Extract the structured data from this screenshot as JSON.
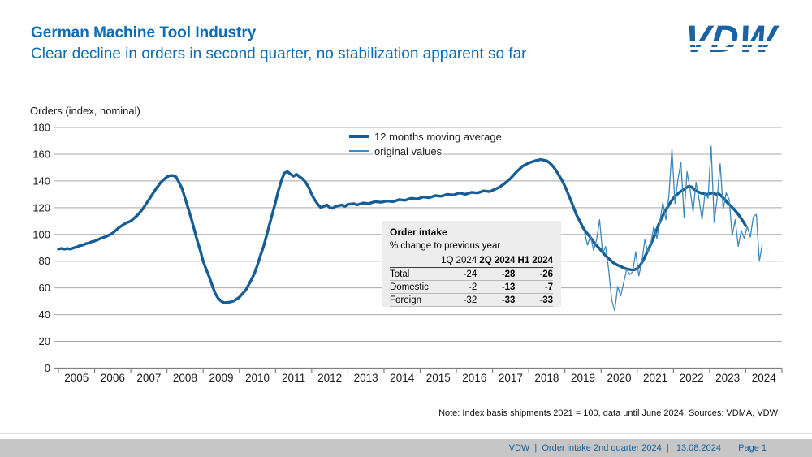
{
  "header": {
    "title": "German Machine Tool Industry",
    "subtitle": "Clear decline in orders in second quarter, no stabilization apparent so far"
  },
  "logo": {
    "text": "VDW"
  },
  "colors": {
    "title_blue": "#0d6cb4",
    "line_thick": "#155d96",
    "line_thin": "#3d89bd",
    "grid": "#a9a9a9",
    "axis": "#7f7f7f",
    "table_bg": "#ededee",
    "footer_bg": "#c6c6c6",
    "footer_text": "#14639f",
    "logo_blue": "#1c63a4"
  },
  "chart_data": {
    "type": "line",
    "title": "Orders (index, nominal)",
    "xlabel": "",
    "ylabel": "Orders (index, nominal)",
    "ylim": [
      0,
      180
    ],
    "grid": true,
    "legend_position": "top-center",
    "y_ticks": [
      0,
      20,
      40,
      60,
      80,
      100,
      120,
      140,
      160,
      180
    ],
    "x_years": [
      "2005",
      "2006",
      "2007",
      "2008",
      "2009",
      "2010",
      "2011",
      "2012",
      "2013",
      "2014",
      "2015",
      "2016",
      "2017",
      "2018",
      "2019",
      "2020",
      "2021",
      "2022",
      "2023",
      "2024"
    ],
    "legend": [
      {
        "name": "12 months moving average",
        "style": "thick"
      },
      {
        "name": "original values",
        "style": "thin"
      }
    ],
    "series": [
      {
        "name": "12 months moving average",
        "points": [
          [
            2005.0,
            89
          ],
          [
            2005.08,
            89.5
          ],
          [
            2005.17,
            89
          ],
          [
            2005.25,
            89.5
          ],
          [
            2005.33,
            89
          ],
          [
            2005.42,
            90
          ],
          [
            2005.5,
            90.5
          ],
          [
            2005.58,
            91.5
          ],
          [
            2005.67,
            92
          ],
          [
            2005.75,
            93
          ],
          [
            2005.83,
            93.5
          ],
          [
            2005.92,
            94.5
          ],
          [
            2006.0,
            95
          ],
          [
            2006.17,
            97
          ],
          [
            2006.33,
            98.5
          ],
          [
            2006.5,
            101
          ],
          [
            2006.67,
            105
          ],
          [
            2006.83,
            108
          ],
          [
            2007.0,
            110
          ],
          [
            2007.17,
            114
          ],
          [
            2007.33,
            119
          ],
          [
            2007.5,
            126
          ],
          [
            2007.67,
            133
          ],
          [
            2007.83,
            139
          ],
          [
            2008.0,
            143
          ],
          [
            2008.08,
            144
          ],
          [
            2008.17,
            144
          ],
          [
            2008.25,
            143
          ],
          [
            2008.33,
            139
          ],
          [
            2008.42,
            134
          ],
          [
            2008.5,
            127
          ],
          [
            2008.58,
            120
          ],
          [
            2008.67,
            112
          ],
          [
            2008.75,
            104
          ],
          [
            2008.83,
            96
          ],
          [
            2008.92,
            88
          ],
          [
            2009.0,
            80
          ],
          [
            2009.08,
            74
          ],
          [
            2009.17,
            68
          ],
          [
            2009.25,
            62
          ],
          [
            2009.33,
            56
          ],
          [
            2009.42,
            52
          ],
          [
            2009.5,
            50
          ],
          [
            2009.58,
            49
          ],
          [
            2009.67,
            49
          ],
          [
            2009.75,
            49.5
          ],
          [
            2009.83,
            50
          ],
          [
            2009.92,
            51.5
          ],
          [
            2010.0,
            53
          ],
          [
            2010.08,
            55.5
          ],
          [
            2010.17,
            58
          ],
          [
            2010.25,
            62
          ],
          [
            2010.33,
            66
          ],
          [
            2010.42,
            71
          ],
          [
            2010.5,
            77
          ],
          [
            2010.58,
            84
          ],
          [
            2010.67,
            91
          ],
          [
            2010.75,
            99
          ],
          [
            2010.83,
            107
          ],
          [
            2010.92,
            116
          ],
          [
            2011.0,
            124
          ],
          [
            2011.08,
            133
          ],
          [
            2011.17,
            141
          ],
          [
            2011.25,
            146
          ],
          [
            2011.33,
            147
          ],
          [
            2011.42,
            145
          ],
          [
            2011.5,
            143.5
          ],
          [
            2011.58,
            145
          ],
          [
            2011.67,
            143
          ],
          [
            2011.75,
            141.5
          ],
          [
            2011.83,
            139
          ],
          [
            2011.92,
            135
          ],
          [
            2012.0,
            130
          ],
          [
            2012.08,
            126
          ],
          [
            2012.17,
            122.5
          ],
          [
            2012.25,
            120
          ],
          [
            2012.33,
            121
          ],
          [
            2012.42,
            122
          ],
          [
            2012.5,
            120
          ],
          [
            2012.58,
            119.5
          ],
          [
            2012.67,
            121
          ],
          [
            2012.75,
            121.5
          ],
          [
            2012.83,
            122
          ],
          [
            2012.92,
            121
          ],
          [
            2013.0,
            122.5
          ],
          [
            2013.17,
            123
          ],
          [
            2013.25,
            122
          ],
          [
            2013.42,
            123.5
          ],
          [
            2013.58,
            123
          ],
          [
            2013.75,
            124.5
          ],
          [
            2013.92,
            124
          ],
          [
            2014.08,
            125
          ],
          [
            2014.25,
            124.5
          ],
          [
            2014.42,
            126
          ],
          [
            2014.58,
            125.5
          ],
          [
            2014.75,
            127
          ],
          [
            2014.92,
            126.5
          ],
          [
            2015.08,
            128
          ],
          [
            2015.25,
            127.5
          ],
          [
            2015.42,
            129
          ],
          [
            2015.58,
            128.5
          ],
          [
            2015.75,
            130
          ],
          [
            2015.92,
            129.5
          ],
          [
            2016.08,
            131
          ],
          [
            2016.25,
            130
          ],
          [
            2016.42,
            131.5
          ],
          [
            2016.58,
            131
          ],
          [
            2016.75,
            132.5
          ],
          [
            2016.92,
            132
          ],
          [
            2017.0,
            133
          ],
          [
            2017.17,
            135
          ],
          [
            2017.33,
            138
          ],
          [
            2017.5,
            142
          ],
          [
            2017.67,
            147
          ],
          [
            2017.83,
            151
          ],
          [
            2018.0,
            153.5
          ],
          [
            2018.17,
            155
          ],
          [
            2018.33,
            156
          ],
          [
            2018.42,
            155.5
          ],
          [
            2018.5,
            155
          ],
          [
            2018.58,
            153.5
          ],
          [
            2018.67,
            151
          ],
          [
            2018.75,
            148
          ],
          [
            2018.83,
            144.5
          ],
          [
            2018.92,
            140.5
          ],
          [
            2019.0,
            136
          ],
          [
            2019.08,
            131
          ],
          [
            2019.17,
            125
          ],
          [
            2019.25,
            119.5
          ],
          [
            2019.33,
            114
          ],
          [
            2019.42,
            109.5
          ],
          [
            2019.5,
            105
          ],
          [
            2019.58,
            102
          ],
          [
            2019.67,
            99
          ],
          [
            2019.75,
            96
          ],
          [
            2019.83,
            93
          ],
          [
            2019.92,
            90.5
          ],
          [
            2020.0,
            88
          ],
          [
            2020.08,
            85.5
          ],
          [
            2020.17,
            83
          ],
          [
            2020.25,
            81
          ],
          [
            2020.33,
            79
          ],
          [
            2020.42,
            77.5
          ],
          [
            2020.5,
            76.5
          ],
          [
            2020.58,
            75.5
          ],
          [
            2020.67,
            74.5
          ],
          [
            2020.75,
            74
          ],
          [
            2020.83,
            73.5
          ],
          [
            2020.92,
            73.5
          ],
          [
            2021.0,
            74.5
          ],
          [
            2021.08,
            77
          ],
          [
            2021.17,
            81
          ],
          [
            2021.25,
            85.5
          ],
          [
            2021.33,
            90
          ],
          [
            2021.42,
            95.5
          ],
          [
            2021.5,
            101
          ],
          [
            2021.58,
            106.5
          ],
          [
            2021.67,
            112
          ],
          [
            2021.75,
            116.5
          ],
          [
            2021.83,
            120
          ],
          [
            2021.92,
            124
          ],
          [
            2022.0,
            127
          ],
          [
            2022.08,
            129.5
          ],
          [
            2022.17,
            131.5
          ],
          [
            2022.25,
            133
          ],
          [
            2022.33,
            134.5
          ],
          [
            2022.42,
            136
          ],
          [
            2022.5,
            135.5
          ],
          [
            2022.58,
            133.5
          ],
          [
            2022.67,
            132
          ],
          [
            2022.75,
            131
          ],
          [
            2022.83,
            130.5
          ],
          [
            2022.92,
            130
          ],
          [
            2023.0,
            130.5
          ],
          [
            2023.08,
            131
          ],
          [
            2023.17,
            130
          ],
          [
            2023.25,
            130.5
          ],
          [
            2023.33,
            128.5
          ],
          [
            2023.42,
            126
          ],
          [
            2023.5,
            123.5
          ],
          [
            2023.58,
            121.5
          ],
          [
            2023.67,
            119
          ],
          [
            2023.75,
            116.5
          ],
          [
            2023.83,
            113.5
          ],
          [
            2023.92,
            110
          ],
          [
            2024.0,
            106.5
          ]
        ]
      },
      {
        "name": "original values",
        "points": [
          [
            2019.542,
            102
          ],
          [
            2019.625,
            92
          ],
          [
            2019.708,
            99
          ],
          [
            2019.792,
            88
          ],
          [
            2019.875,
            96
          ],
          [
            2019.958,
            111
          ],
          [
            2020.042,
            86
          ],
          [
            2020.125,
            91
          ],
          [
            2020.208,
            74
          ],
          [
            2020.292,
            51
          ],
          [
            2020.375,
            43
          ],
          [
            2020.458,
            61
          ],
          [
            2020.542,
            54
          ],
          [
            2020.625,
            64
          ],
          [
            2020.708,
            74
          ],
          [
            2020.792,
            70
          ],
          [
            2020.875,
            72
          ],
          [
            2020.958,
            87
          ],
          [
            2021.042,
            69
          ],
          [
            2021.125,
            79
          ],
          [
            2021.208,
            96
          ],
          [
            2021.292,
            87
          ],
          [
            2021.375,
            93
          ],
          [
            2021.458,
            106
          ],
          [
            2021.542,
            97
          ],
          [
            2021.625,
            109
          ],
          [
            2021.708,
            124
          ],
          [
            2021.792,
            111
          ],
          [
            2021.875,
            129
          ],
          [
            2021.958,
            164
          ],
          [
            2022.042,
            123
          ],
          [
            2022.125,
            141
          ],
          [
            2022.208,
            154
          ],
          [
            2022.292,
            113
          ],
          [
            2022.375,
            147
          ],
          [
            2022.458,
            134
          ],
          [
            2022.542,
            117
          ],
          [
            2022.625,
            139
          ],
          [
            2022.708,
            126
          ],
          [
            2022.792,
            111
          ],
          [
            2022.875,
            131
          ],
          [
            2022.958,
            127
          ],
          [
            2023.042,
            166
          ],
          [
            2023.125,
            109
          ],
          [
            2023.208,
            127
          ],
          [
            2023.292,
            153
          ],
          [
            2023.375,
            119
          ],
          [
            2023.458,
            131
          ],
          [
            2023.542,
            126
          ],
          [
            2023.625,
            99
          ],
          [
            2023.708,
            111
          ],
          [
            2023.792,
            91
          ],
          [
            2023.875,
            103
          ],
          [
            2023.958,
            97
          ],
          [
            2024.042,
            106
          ],
          [
            2024.125,
            98
          ],
          [
            2024.208,
            113
          ],
          [
            2024.292,
            115
          ],
          [
            2024.375,
            80
          ],
          [
            2024.458,
            93
          ]
        ]
      }
    ]
  },
  "table": {
    "title": "Order intake",
    "subtitle": "% change to previous year",
    "columns": [
      "",
      "1Q 2024",
      "2Q 2024",
      "H1 2024"
    ],
    "rows": [
      {
        "label": "Total",
        "values": [
          "-24",
          "-28",
          "-26"
        ]
      },
      {
        "label": "Domestic",
        "values": [
          "-2",
          "-13",
          "-7"
        ]
      },
      {
        "label": "Foreign",
        "values": [
          "-32",
          "-33",
          "-33"
        ]
      }
    ]
  },
  "note": "Note: Index basis shipments 2021 = 100, data until June 2024, Sources: VDMA, VDW",
  "footer": {
    "parts": [
      "VDW",
      "Order intake 2nd quarter 2024",
      "13.08.2024",
      "Page 1"
    ],
    "text": "VDW  |  Order intake 2nd quarter 2024  |   13.08.2024    |  Page 1"
  }
}
